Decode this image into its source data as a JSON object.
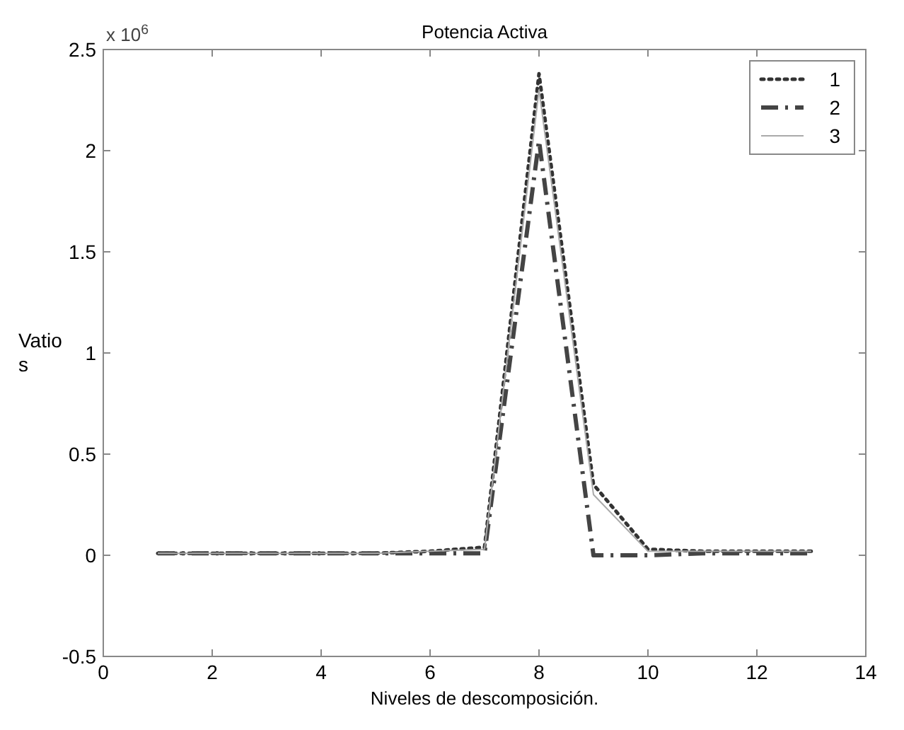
{
  "chart_data": {
    "type": "line",
    "title": "Potencia Activa",
    "xlabel": "Niveles de descomposición.",
    "ylabel": "Vatio\ns",
    "annotations": [
      "x 10$^{6}$"
    ],
    "x": [
      1,
      2,
      3,
      4,
      5,
      6,
      7,
      8,
      9,
      10,
      11,
      12,
      13
    ],
    "series": [
      {
        "name": "1",
        "color": "#333333",
        "line_style": "dotted",
        "values": [
          0.01,
          0.01,
          0.01,
          0.01,
          0.01,
          0.02,
          0.04,
          2.38,
          0.35,
          0.03,
          0.02,
          0.02,
          0.02
        ]
      },
      {
        "name": "2",
        "color": "#444444",
        "line_style": "dashed",
        "values": [
          0.01,
          0.01,
          0.01,
          0.01,
          0.01,
          0.01,
          0.01,
          2.05,
          0.0,
          0.0,
          0.01,
          0.01,
          0.01
        ]
      },
      {
        "name": "3",
        "color": "#aaaaaa",
        "line_style": "solid",
        "values": [
          0.01,
          0.01,
          0.01,
          0.01,
          0.01,
          0.02,
          0.03,
          2.3,
          0.3,
          0.02,
          0.02,
          0.02,
          0.02
        ]
      }
    ],
    "xlim": [
      0,
      14
    ],
    "xticks": [
      0,
      2,
      4,
      6,
      8,
      10,
      12,
      14
    ],
    "ylim": [
      -0.5,
      2.5
    ],
    "yticks": [
      -0.5,
      0,
      0.5,
      1,
      1.5,
      2,
      2.5
    ],
    "grid": false,
    "legend": "top right"
  }
}
